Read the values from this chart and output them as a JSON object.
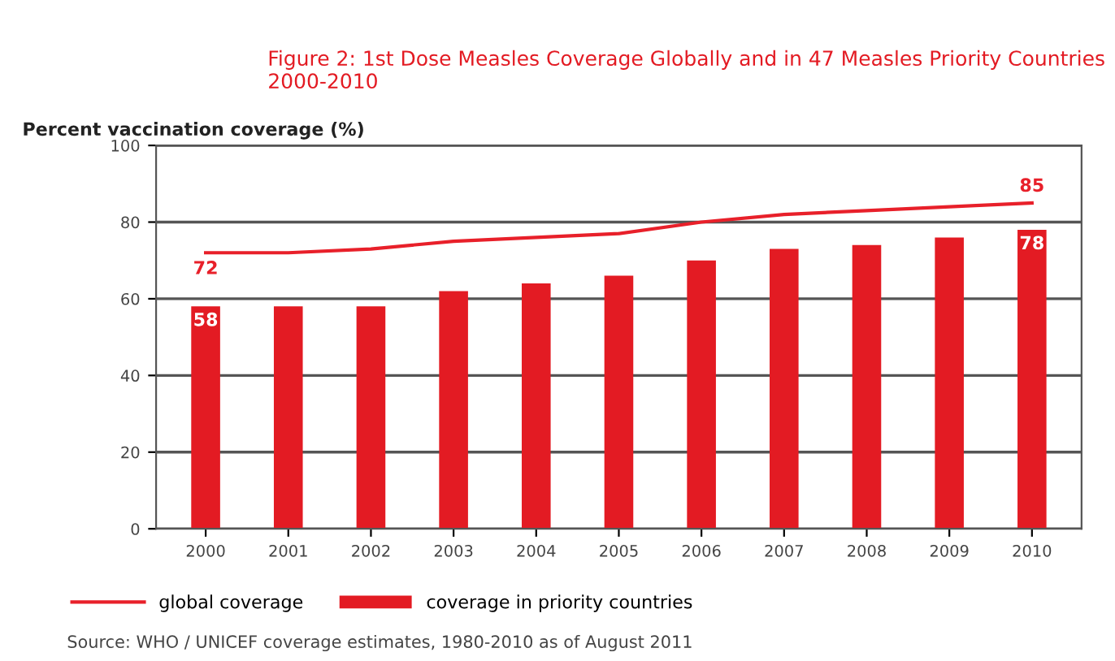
{
  "chart_data": {
    "type": "bar",
    "title": "Figure 2: 1st Dose Measles Coverage Globally and in 47 Measles Priority Countries 2000-2010",
    "ylabel": "Percent vaccination coverage (%)",
    "categories": [
      "2000",
      "2001",
      "2002",
      "2003",
      "2004",
      "2005",
      "2006",
      "2007",
      "2008",
      "2009",
      "2010"
    ],
    "series": [
      {
        "name": "global coverage",
        "type": "line",
        "color": "#e8202a",
        "values": [
          72,
          72,
          73,
          75,
          76,
          77,
          80,
          82,
          83,
          84,
          85
        ],
        "value_labels": [
          "72",
          null,
          null,
          null,
          null,
          null,
          null,
          null,
          null,
          null,
          "85"
        ]
      },
      {
        "name": "coverage in priority countries",
        "color": "#e31b23",
        "values": [
          58,
          58,
          58,
          62,
          64,
          66,
          70,
          73,
          74,
          76,
          78
        ],
        "value_labels": [
          "58",
          null,
          null,
          null,
          null,
          null,
          null,
          null,
          null,
          null,
          "78"
        ]
      }
    ],
    "ylim": [
      0,
      100
    ],
    "yticks": [
      0,
      20,
      40,
      60,
      80,
      100
    ],
    "grid": "y",
    "legend": "bottom",
    "annotations": [
      "Source: WHO / UNICEF coverage estimates, 1980-2010 as of August 2011"
    ]
  }
}
